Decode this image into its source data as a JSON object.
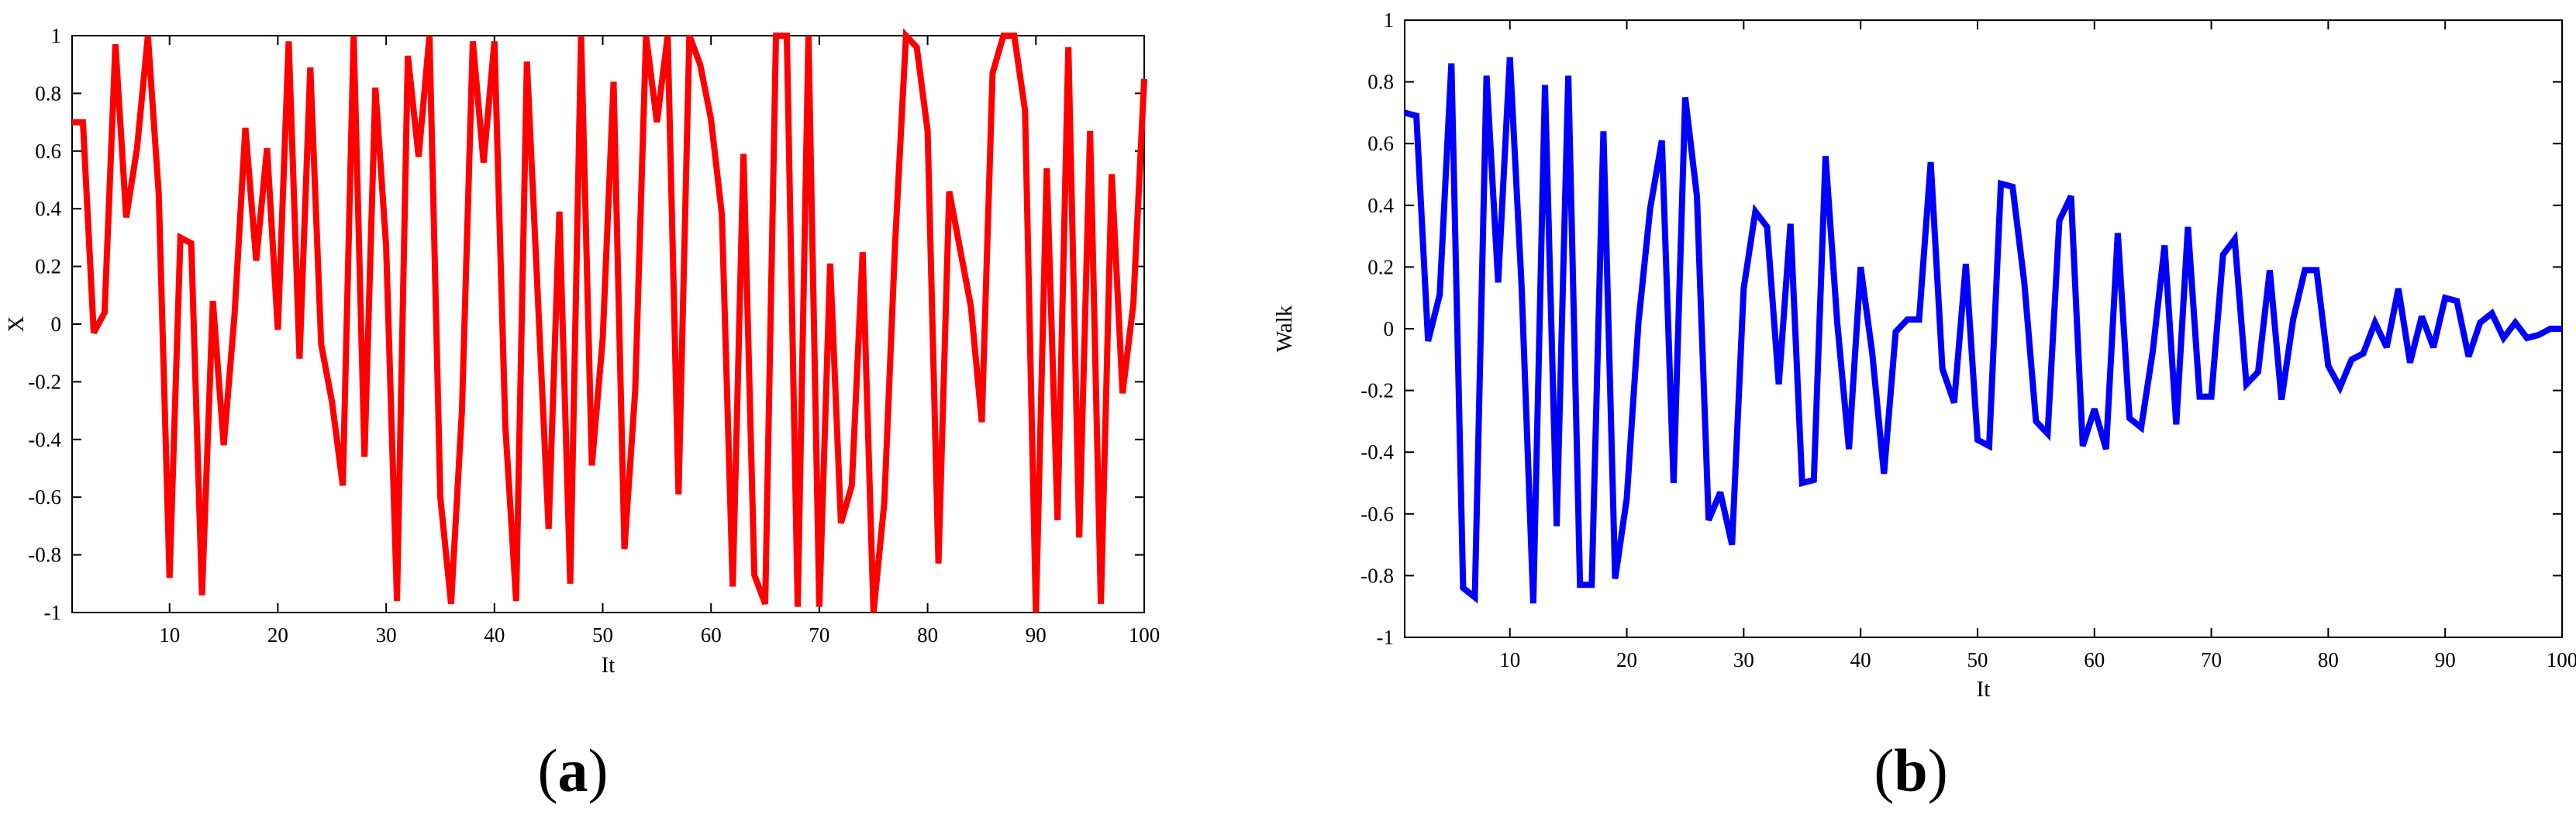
{
  "chart_data": [
    {
      "type": "line",
      "panel": "a",
      "xlabel": "It",
      "ylabel": "X",
      "xlim": [
        1,
        100
      ],
      "ylim": [
        -1,
        1
      ],
      "xticks": [
        10,
        20,
        30,
        40,
        50,
        60,
        70,
        80,
        90,
        100
      ],
      "yticks": [
        -1,
        -0.8,
        -0.6,
        -0.4,
        -0.2,
        0,
        0.2,
        0.4,
        0.6,
        0.8,
        1
      ],
      "ytick_labels": [
        "-1",
        "-0.8",
        "-0.6",
        "-0.4",
        "-0.2",
        "0",
        "0.2",
        "0.4",
        "0.6",
        "0.8",
        "1"
      ],
      "grid": false,
      "color": "#ff0000",
      "x": [
        1,
        2,
        3,
        4,
        5,
        6,
        7,
        8,
        9,
        10,
        11,
        12,
        13,
        14,
        15,
        16,
        17,
        18,
        19,
        20,
        21,
        22,
        23,
        24,
        25,
        26,
        27,
        28,
        29,
        30,
        31,
        32,
        33,
        34,
        35,
        36,
        37,
        38,
        39,
        40,
        41,
        42,
        43,
        44,
        45,
        46,
        47,
        48,
        49,
        50,
        51,
        52,
        53,
        54,
        55,
        56,
        57,
        58,
        59,
        60,
        61,
        62,
        63,
        64,
        65,
        66,
        67,
        68,
        69,
        70,
        71,
        72,
        73,
        74,
        75,
        76,
        77,
        78,
        79,
        80,
        81,
        82,
        83,
        84,
        85,
        86,
        87,
        88,
        89,
        90,
        91,
        92,
        93,
        94,
        95,
        96,
        97,
        98,
        99,
        100
      ],
      "y": [
        0.7,
        0.7,
        -0.03,
        0.04,
        0.97,
        0.37,
        0.61,
        1.0,
        0.45,
        -0.88,
        0.3,
        0.28,
        -0.94,
        0.08,
        -0.42,
        0.03,
        0.68,
        0.22,
        0.61,
        -0.02,
        0.98,
        -0.12,
        0.89,
        -0.07,
        -0.27,
        -0.56,
        1.0,
        -0.46,
        0.82,
        0.27,
        -0.96,
        0.93,
        0.58,
        1.0,
        -0.6,
        -0.97,
        -0.3,
        0.98,
        0.56,
        0.98,
        -0.35,
        -0.96,
        0.91,
        0.1,
        -0.71,
        0.39,
        -0.9,
        1.0,
        -0.49,
        -0.05,
        0.84,
        -0.78,
        -0.23,
        1.0,
        0.7,
        1.0,
        -0.59,
        1.0,
        0.9,
        0.71,
        0.38,
        -0.91,
        0.59,
        -0.87,
        -0.97,
        1.0,
        1.0,
        -0.98,
        1.0,
        -0.98,
        0.21,
        -0.69,
        -0.56,
        0.25,
        -1.0,
        -0.62,
        0.28,
        1.0,
        0.96,
        0.67,
        -0.83,
        0.46,
        0.26,
        0.06,
        -0.34,
        0.87,
        1.0,
        1.0,
        0.74,
        -1.0,
        0.54,
        -0.68,
        0.96,
        -0.74,
        0.67,
        -0.97,
        0.52,
        -0.24,
        0.07,
        0.85
      ]
    },
    {
      "type": "line",
      "panel": "b",
      "xlabel": "It",
      "ylabel": "Walk",
      "xlim": [
        1,
        100
      ],
      "ylim": [
        -1,
        1
      ],
      "xticks": [
        10,
        20,
        30,
        40,
        50,
        60,
        70,
        80,
        90,
        100
      ],
      "yticks": [
        -1,
        -0.8,
        -0.6,
        -0.4,
        -0.2,
        0,
        0.2,
        0.4,
        0.6,
        0.8,
        1
      ],
      "ytick_labels": [
        "-1",
        "-0.8",
        "-0.6",
        "-0.4",
        "-0.2",
        "0",
        "0.2",
        "0.4",
        "0.6",
        "0.8",
        "1"
      ],
      "grid": false,
      "color": "#0000ff",
      "x": [
        1,
        2,
        3,
        4,
        5,
        6,
        7,
        8,
        9,
        10,
        11,
        12,
        13,
        14,
        15,
        16,
        17,
        18,
        19,
        20,
        21,
        22,
        23,
        24,
        25,
        26,
        27,
        28,
        29,
        30,
        31,
        32,
        33,
        34,
        35,
        36,
        37,
        38,
        39,
        40,
        41,
        42,
        43,
        44,
        45,
        46,
        47,
        48,
        49,
        50,
        51,
        52,
        53,
        54,
        55,
        56,
        57,
        58,
        59,
        60,
        61,
        62,
        63,
        64,
        65,
        66,
        67,
        68,
        69,
        70,
        71,
        72,
        73,
        74,
        75,
        76,
        77,
        78,
        79,
        80,
        81,
        82,
        83,
        84,
        85,
        86,
        87,
        88,
        89,
        90,
        91,
        92,
        93,
        94,
        95,
        96,
        97,
        98,
        99,
        100
      ],
      "y": [
        0.7,
        0.69,
        -0.04,
        0.11,
        0.86,
        -0.84,
        -0.87,
        0.82,
        0.15,
        0.88,
        0.14,
        -0.89,
        0.79,
        -0.64,
        0.82,
        -0.83,
        -0.83,
        0.64,
        -0.81,
        -0.55,
        0.02,
        0.39,
        0.61,
        -0.5,
        0.75,
        0.43,
        -0.62,
        -0.53,
        -0.7,
        0.13,
        0.38,
        0.33,
        -0.18,
        0.34,
        -0.5,
        -0.49,
        0.56,
        0.02,
        -0.39,
        0.2,
        -0.08,
        -0.47,
        -0.01,
        0.03,
        0.03,
        0.54,
        -0.13,
        -0.24,
        0.21,
        -0.36,
        -0.38,
        0.47,
        0.46,
        0.15,
        -0.3,
        -0.34,
        0.35,
        0.43,
        -0.38,
        -0.26,
        -0.39,
        0.31,
        -0.29,
        -0.32,
        -0.07,
        0.27,
        -0.31,
        0.33,
        -0.22,
        -0.22,
        0.24,
        0.29,
        -0.18,
        -0.14,
        0.19,
        -0.23,
        0.03,
        0.19,
        0.19,
        -0.12,
        -0.19,
        -0.1,
        -0.08,
        0.02,
        -0.06,
        0.13,
        -0.11,
        0.04,
        -0.06,
        0.1,
        0.09,
        -0.09,
        0.02,
        0.05,
        -0.03,
        0.02,
        -0.03,
        -0.02,
        0.0,
        0.0
      ]
    }
  ],
  "captions": {
    "a_open": "(",
    "a_letter": "a",
    "a_close": ")",
    "b_open": "(",
    "b_letter": "b",
    "b_close": ")"
  }
}
